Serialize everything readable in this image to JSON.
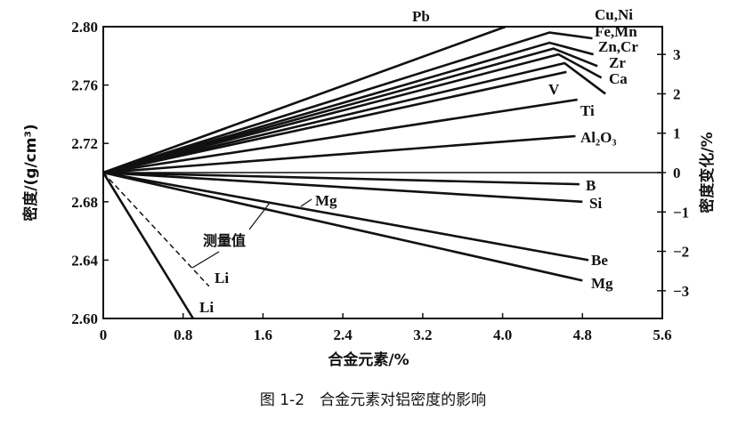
{
  "chart_data": {
    "type": "line",
    "title": "",
    "caption": "图 1-2　合金元素对铝密度的影响",
    "xlabel": "合金元素/%",
    "ylabel": "密度/(g/cm³)",
    "ylabel_right": "密度变化/%",
    "xlim": [
      0,
      5.6
    ],
    "ylim": [
      2.6,
      2.8
    ],
    "xticks": [
      "0",
      "0.8",
      "1.6",
      "2.4",
      "3.2",
      "4.0",
      "4.8",
      "5.6"
    ],
    "yticks": [
      "2.60",
      "2.64",
      "2.68",
      "2.72",
      "2.76",
      "2.80"
    ],
    "yticks_right": [
      "3",
      "2",
      "1",
      "0",
      "−1",
      "−2",
      "−3"
    ],
    "grid": false,
    "series": [
      {
        "name": "Pb",
        "x": [
          0,
          4.03
        ],
        "y": [
          2.7,
          2.8
        ]
      },
      {
        "name": "Cu,Ni",
        "x": [
          0,
          4.47
        ],
        "y": [
          2.7,
          2.796
        ]
      },
      {
        "name": "Fe,Mn",
        "x": [
          0,
          4.47
        ],
        "y": [
          2.7,
          2.789
        ]
      },
      {
        "name": "Zn,Cr",
        "x": [
          0,
          4.51
        ],
        "y": [
          2.7,
          2.785
        ]
      },
      {
        "name": "Zr",
        "x": [
          0,
          4.56
        ],
        "y": [
          2.7,
          2.781
        ]
      },
      {
        "name": "Ca",
        "x": [
          0,
          4.62
        ],
        "y": [
          2.7,
          2.775
        ]
      },
      {
        "name": "V",
        "x": [
          0,
          4.64
        ],
        "y": [
          2.7,
          2.769
        ]
      },
      {
        "name": "Ti",
        "x": [
          0,
          4.75
        ],
        "y": [
          2.7,
          2.75
        ]
      },
      {
        "name": "Al₂O₃",
        "x": [
          0,
          4.73
        ],
        "y": [
          2.7,
          2.725
        ]
      },
      {
        "name": "B",
        "x": [
          0,
          4.77
        ],
        "y": [
          2.7,
          2.692
        ]
      },
      {
        "name": "Si",
        "x": [
          0,
          4.8
        ],
        "y": [
          2.7,
          2.68
        ]
      },
      {
        "name": "Be",
        "x": [
          0,
          4.86
        ],
        "y": [
          2.7,
          2.64
        ]
      },
      {
        "name": "Mg",
        "x": [
          0,
          4.8
        ],
        "y": [
          2.7,
          2.626
        ]
      },
      {
        "name": "Li",
        "x": [
          0,
          0.9
        ],
        "y": [
          2.7,
          2.6
        ]
      },
      {
        "name": "Li",
        "x": [
          0,
          1.06
        ],
        "y": [
          2.7,
          2.622
        ],
        "dashed": true
      }
    ],
    "annotations": [
      {
        "text": "Mg"
      },
      {
        "text": "测量值"
      }
    ]
  }
}
